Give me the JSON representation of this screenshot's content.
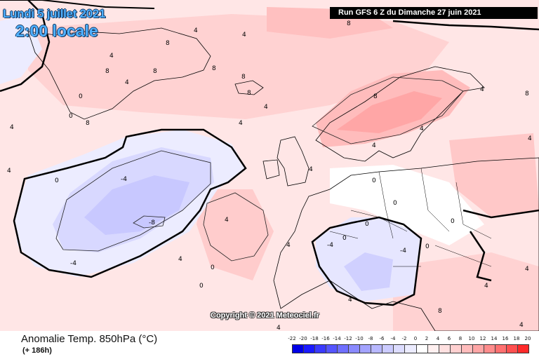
{
  "header": {
    "valid_date": "Lundi 5 juillet 2021",
    "valid_time": "2:00 locale",
    "run_info": "Run GFS 6 Z du Dimanche 27 juin 2021"
  },
  "map": {
    "copyright": "Copyright © 2021 Meteociel.fr",
    "contour_labels": [
      {
        "id": "grl-1",
        "text": "4"
      },
      {
        "id": "grl-2",
        "text": "4"
      },
      {
        "id": "grl-3",
        "text": "8"
      },
      {
        "id": "grl-4",
        "text": "8"
      },
      {
        "id": "grl-5",
        "text": "8"
      },
      {
        "id": "grl-6",
        "text": "4"
      },
      {
        "id": "grl-7",
        "text": "8"
      },
      {
        "id": "grl-8",
        "text": "8"
      },
      {
        "id": "grl-9",
        "text": "4"
      },
      {
        "id": "grl-10",
        "text": "0"
      },
      {
        "id": "grl-11",
        "text": "0"
      },
      {
        "id": "grl-12",
        "text": "4"
      },
      {
        "id": "grl-13",
        "text": "8"
      },
      {
        "id": "grl-14",
        "text": "8"
      },
      {
        "id": "top-1",
        "text": "8"
      },
      {
        "id": "atl-1",
        "text": "4"
      },
      {
        "id": "atl-2",
        "text": "4"
      },
      {
        "id": "atl-3",
        "text": "4"
      },
      {
        "id": "low-1",
        "text": "-4"
      },
      {
        "id": "low-2",
        "text": "-8"
      },
      {
        "id": "low-3",
        "text": "-4"
      },
      {
        "id": "low-4",
        "text": "0"
      },
      {
        "id": "low-5",
        "text": "0"
      },
      {
        "id": "atl-4",
        "text": "4"
      },
      {
        "id": "atl-5",
        "text": "4"
      },
      {
        "id": "atl-6",
        "text": "0"
      },
      {
        "id": "atl-7",
        "text": "4"
      },
      {
        "id": "eur-1",
        "text": "0"
      },
      {
        "id": "eur-2",
        "text": "0"
      },
      {
        "id": "eur-3",
        "text": "4"
      },
      {
        "id": "eur-4",
        "text": "-4"
      },
      {
        "id": "eur-5",
        "text": "0"
      },
      {
        "id": "eur-6",
        "text": "0"
      },
      {
        "id": "eur-7",
        "text": "-4"
      },
      {
        "id": "eur-8",
        "text": "0"
      },
      {
        "id": "eur-9",
        "text": "4"
      },
      {
        "id": "eur-10",
        "text": "8"
      },
      {
        "id": "eur-11",
        "text": "4"
      },
      {
        "id": "eur-12",
        "text": "4"
      },
      {
        "id": "eur-13",
        "text": "4"
      },
      {
        "id": "eur-14",
        "text": "0"
      },
      {
        "id": "eur-15",
        "text": "4"
      },
      {
        "id": "scn-1",
        "text": "4"
      },
      {
        "id": "scn-2",
        "text": "8"
      },
      {
        "id": "scn-3",
        "text": "4"
      },
      {
        "id": "scn-4",
        "text": "4"
      },
      {
        "id": "eur-16",
        "text": "8"
      },
      {
        "id": "eur-17",
        "text": "4"
      }
    ]
  },
  "footer": {
    "field_title": "Anomalie Temp. 850hPa (°C)",
    "lead_time": "(+ 186h)"
  },
  "legend": {
    "ticks": [
      "-22",
      "-20",
      "-18",
      "-16",
      "-14",
      "-12",
      "-10",
      "-8",
      "-6",
      "-4",
      "-2",
      "0",
      "2",
      "4",
      "6",
      "8",
      "10",
      "12",
      "14",
      "16",
      "18",
      "20"
    ],
    "colors": [
      "#0000e6",
      "#1a1aff",
      "#3a3aff",
      "#5555ff",
      "#6f6fff",
      "#8a8aff",
      "#a3a3ff",
      "#b8b8ff",
      "#cbcbff",
      "#dcdcff",
      "#ececff",
      "#ffffff",
      "#fff0f0",
      "#ffe0e0",
      "#ffd0d0",
      "#ffbcbc",
      "#ffa6a6",
      "#ff8c8c",
      "#ff7070",
      "#ff5050",
      "#ff2a2a"
    ]
  }
}
